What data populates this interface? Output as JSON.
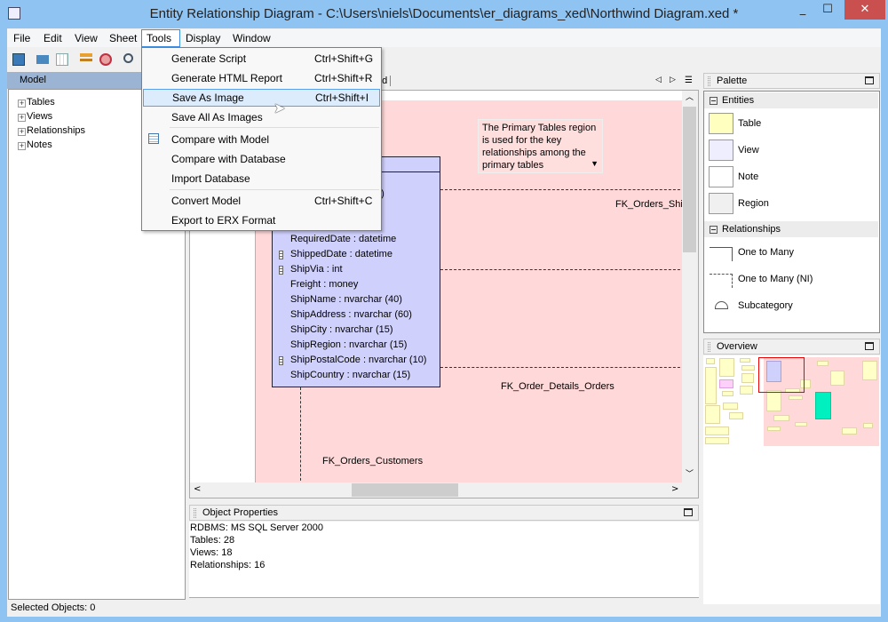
{
  "window": {
    "title": "Entity Relationship Diagram - C:\\Users\\niels\\Documents\\er_diagrams_xed\\Northwind Diagram.xed *",
    "minimize": "_",
    "maximize": "☐",
    "close": "✕"
  },
  "menubar": [
    "File",
    "Edit",
    "View",
    "Sheet",
    "Tools",
    "Display",
    "Window"
  ],
  "tools_menu": [
    {
      "label": "Generate Script",
      "shortcut": "Ctrl+Shift+G"
    },
    {
      "label": "Generate HTML Report",
      "shortcut": "Ctrl+Shift+R"
    },
    {
      "label": "Save As Image",
      "shortcut": "Ctrl+Shift+I"
    },
    {
      "label": "Save All As Images",
      "shortcut": ""
    },
    {
      "label": "Compare with Model",
      "shortcut": ""
    },
    {
      "label": "Compare with Database",
      "shortcut": ""
    },
    {
      "label": "Import Database",
      "shortcut": ""
    },
    {
      "label": "Convert Model",
      "shortcut": "Ctrl+Shift+C"
    },
    {
      "label": "Export to ERX Format",
      "shortcut": ""
    }
  ],
  "model_panel": {
    "title": "Model",
    "items": [
      "Tables",
      "Views",
      "Relationships",
      "Notes"
    ]
  },
  "tabs": {
    "partial_tab": "nd"
  },
  "diagram": {
    "note": "The Primary Tables region is used for the key relationships among the primary tables",
    "entity_fragment": "5)",
    "columns": [
      {
        "text": "RequiredDate : datetime",
        "key": false
      },
      {
        "text": "ShippedDate : datetime",
        "key": true
      },
      {
        "text": "ShipVia : int",
        "key": true
      },
      {
        "text": "Freight : money",
        "key": false
      },
      {
        "text": "ShipName : nvarchar (40)",
        "key": false
      },
      {
        "text": "ShipAddress : nvarchar (60)",
        "key": false
      },
      {
        "text": "ShipCity : nvarchar (15)",
        "key": false
      },
      {
        "text": "ShipRegion : nvarchar (15)",
        "key": false
      },
      {
        "text": "ShipPostalCode : nvarchar (10)",
        "key": true
      },
      {
        "text": "ShipCountry : nvarchar (15)",
        "key": false
      }
    ],
    "relationships": [
      "FK_Orders_Ship",
      "FK_Order_Details_Orders",
      "FK_Orders_Customers"
    ]
  },
  "object_properties": {
    "title": "Object Properties",
    "lines": [
      "RDBMS: MS SQL Server 2000",
      "Tables: 28",
      "Views: 18",
      "Relationships: 16"
    ]
  },
  "palette": {
    "title": "Palette",
    "entities_label": "Entities",
    "entities": [
      "Table",
      "View",
      "Note",
      "Region"
    ],
    "relationships_label": "Relationships",
    "relationships": [
      "One to Many",
      "One to Many (NI)",
      "Subcategory"
    ]
  },
  "overview": {
    "title": "Overview"
  },
  "status": {
    "text": "Selected Objects: 0"
  },
  "colors": {
    "titlebar": "#8fc3f2",
    "close": "#c9504f",
    "region": "#ffd9d9",
    "entity": "#d0d0fc",
    "highlight": "#dcecfc"
  }
}
